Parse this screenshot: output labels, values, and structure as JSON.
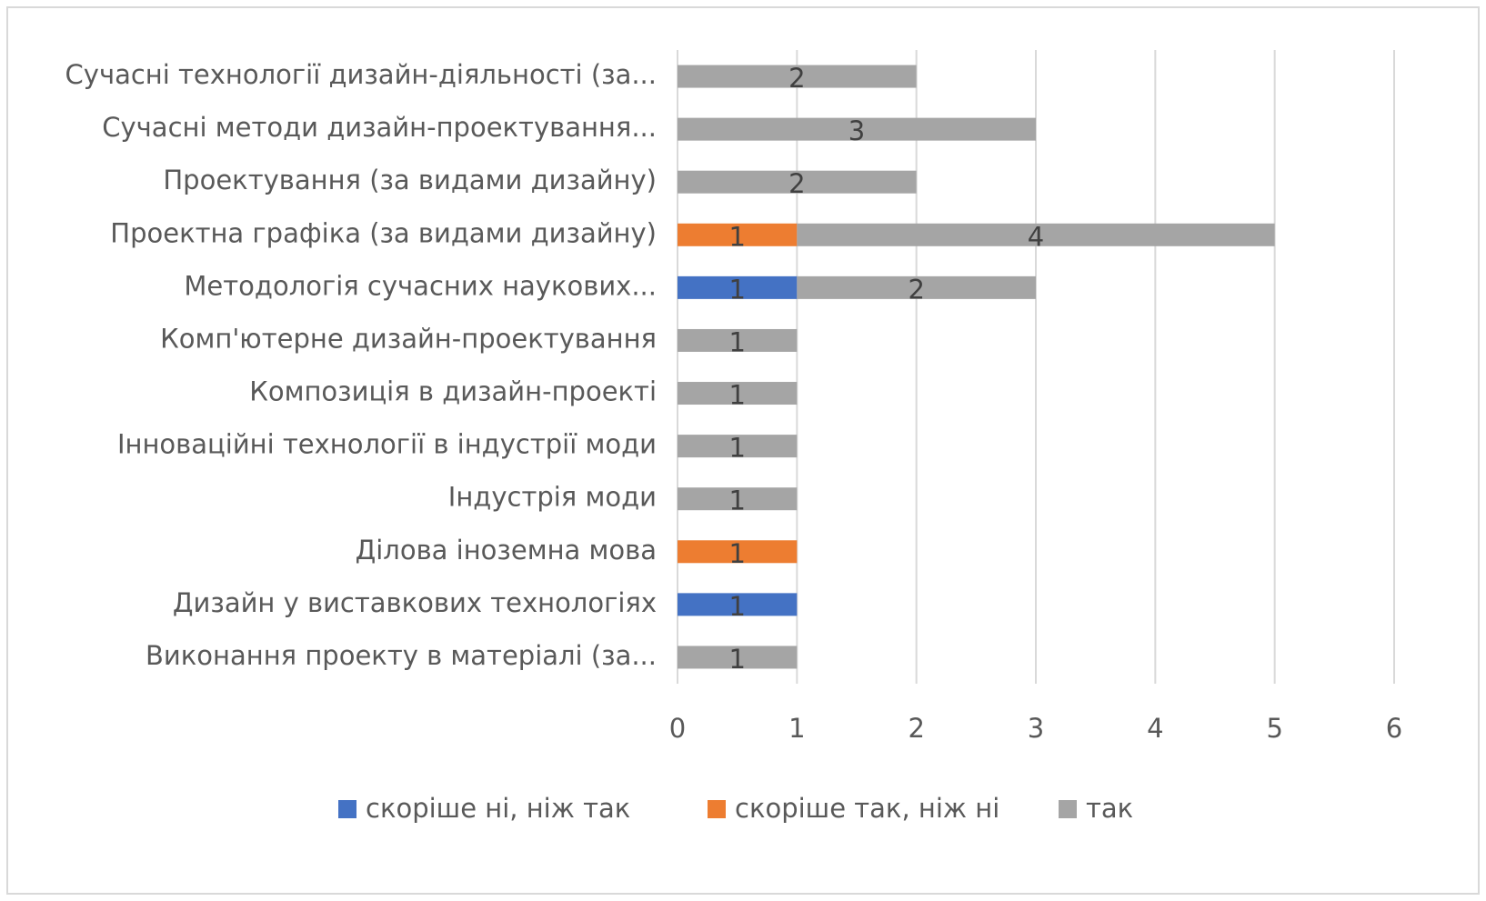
{
  "chart_data": {
    "type": "bar",
    "orientation": "horizontal",
    "stacked": true,
    "categories": [
      "Виконання проекту в матеріалі (за...",
      "Дизайн у виставкових технологіях",
      "Ділова іноземна мова",
      "Індустрія моди",
      "Інноваційні технології в індустрії моди",
      "Композиція в дизайн-проекті",
      "Комп'ютерне дизайн-проектування",
      "Методологія сучасних наукових...",
      "Проектна графіка (за видами дизайну)",
      "Проектування (за видами дизайну)",
      "Сучасні методи дизайн-проектування...",
      "Сучасні технології дизайн-діяльності (за..."
    ],
    "series": [
      {
        "name": "скоріше ні, ніж так",
        "color": "#4472c4",
        "values": [
          null,
          1,
          null,
          null,
          null,
          null,
          null,
          1,
          null,
          null,
          null,
          null
        ]
      },
      {
        "name": "скоріше так, ніж ні",
        "color": "#ed7d31",
        "values": [
          null,
          null,
          1,
          null,
          null,
          null,
          null,
          null,
          1,
          null,
          null,
          null
        ]
      },
      {
        "name": "так",
        "color": "#a5a5a5",
        "values": [
          1,
          null,
          null,
          1,
          1,
          1,
          1,
          2,
          4,
          2,
          3,
          2
        ]
      }
    ],
    "xlim": [
      0,
      6
    ],
    "xticks": [
      0,
      1,
      2,
      3,
      4,
      5,
      6
    ],
    "grid": true,
    "legend": "bottom"
  }
}
